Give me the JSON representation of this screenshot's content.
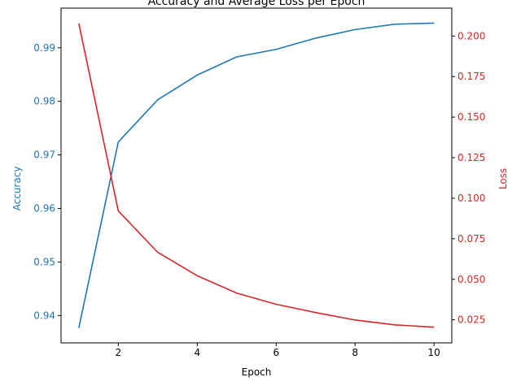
{
  "chart_data": {
    "type": "line",
    "title": "Accuracy and Average Loss per Epoch",
    "xlabel": "Epoch",
    "ylabel_left": "Accuracy",
    "ylabel_right": "Loss",
    "x": [
      1,
      2,
      3,
      4,
      5,
      6,
      7,
      8,
      9,
      10
    ],
    "xlim": [
      0.55,
      10.45
    ],
    "xticks": [
      2,
      4,
      6,
      8,
      10
    ],
    "xtick_labels": [
      "2",
      "4",
      "6",
      "8",
      "10"
    ],
    "ylim_left": [
      0.9349,
      0.9974
    ],
    "yticks_left": [
      0.94,
      0.95,
      0.96,
      0.97,
      0.98,
      0.99
    ],
    "ytick_labels_left": [
      "0.94",
      "0.95",
      "0.96",
      "0.97",
      "0.98",
      "0.99"
    ],
    "ylim_right": [
      0.0108,
      0.2172
    ],
    "yticks_right": [
      0.025,
      0.05,
      0.075,
      0.1,
      0.125,
      0.15,
      0.175,
      0.2
    ],
    "ytick_labels_right": [
      "0.025",
      "0.050",
      "0.075",
      "0.100",
      "0.125",
      "0.150",
      "0.175",
      "0.200"
    ],
    "grid": false,
    "series": [
      {
        "axis": "left",
        "color": "#1f77b4",
        "values": [
          0.9377,
          0.9724,
          0.9803,
          0.9849,
          0.9883,
          0.9897,
          0.9918,
          0.9934,
          0.9944,
          0.9946
        ]
      },
      {
        "axis": "right",
        "color": "#d62728",
        "values": [
          0.2077,
          0.0922,
          0.0666,
          0.0522,
          0.0415,
          0.0346,
          0.0295,
          0.0249,
          0.0219,
          0.0205
        ]
      }
    ]
  }
}
